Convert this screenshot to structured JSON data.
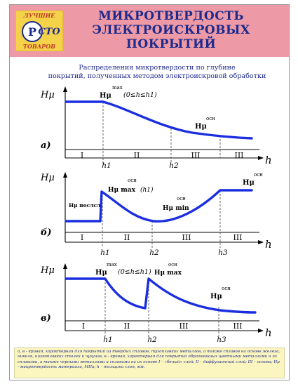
{
  "header": {
    "logo_top": "ЛУЧШИЕ",
    "logo_main": "Р",
    "logo_mid": "СТО",
    "logo_bottom": "ТОВАРОВ",
    "title_lines": [
      "МИКРОТВЕРДОСТЬ",
      "ЭЛЕКТРОИСКРОВЫХ",
      "ПОКРЫТИЙ"
    ]
  },
  "subtitle_lines": [
    "Распределения микротвердости по глубине",
    "покрытий, полученных методом электроискровой обработки"
  ],
  "colors": {
    "header_bg": "#ee9aa6",
    "title": "#1c2a8c",
    "curve": "#1a2ee0",
    "axis": "#000000",
    "footer_bg": "#fbf6c0"
  },
  "diagrams": [
    {
      "label": "а)",
      "y_axis": "Hμ",
      "x_axis": "h",
      "zones": [
        "I",
        "II",
        "III",
        "III"
      ],
      "ticks": [
        "h1",
        "h2"
      ],
      "annotations": [
        {
          "main": "Hμ",
          "sup": "max",
          "extra": "(0≤h≤h1)"
        },
        {
          "main": "Hμ",
          "sup": "осн",
          "extra": ""
        }
      ]
    },
    {
      "label": "б)",
      "y_axis": "Hμ",
      "x_axis": "h",
      "zones": [
        "I",
        "II",
        "III",
        "III"
      ],
      "ticks": [
        "h1",
        "h2",
        "h3"
      ],
      "annotations": [
        {
          "main": "Hμ послсл",
          "sup": "",
          "extra": ""
        },
        {
          "main": "Hμ max",
          "sup": "осн",
          "extra": "(h1)"
        },
        {
          "main": "Hμ min",
          "sup": "осн",
          "extra": ""
        },
        {
          "main": "Hμ",
          "sup": "осн",
          "extra": ""
        }
      ]
    },
    {
      "label": "в)",
      "y_axis": "Hμ",
      "x_axis": "h",
      "zones": [
        "I",
        "II",
        "III",
        "III"
      ],
      "ticks": [
        "h1",
        "h2",
        "h3"
      ],
      "annotations": [
        {
          "main": "Hμ",
          "sup": "max",
          "extra": "(0≤h≤h1)"
        },
        {
          "main": "Hμ max",
          "sup": "осн",
          "extra": ""
        },
        {
          "main": "Hμ",
          "sup": "осн",
          "extra": ""
        }
      ]
    }
  ],
  "footer_text": "а, в - кривая, характерная для покрытий из твердых сплавов, тугоплавких металлов, а также сплавов на основе железа, никеля, низкоплавких сталей и чугунов, в - кривая, характерная для покрытий образованных цветными металлами и их сплавами, а также черными металлами и сплавами на их основе I – «белый» слой; II – диффузионный слой; III – основа; Hμ - микротвердость материала, МПа; h – толщина слоя, мм."
}
